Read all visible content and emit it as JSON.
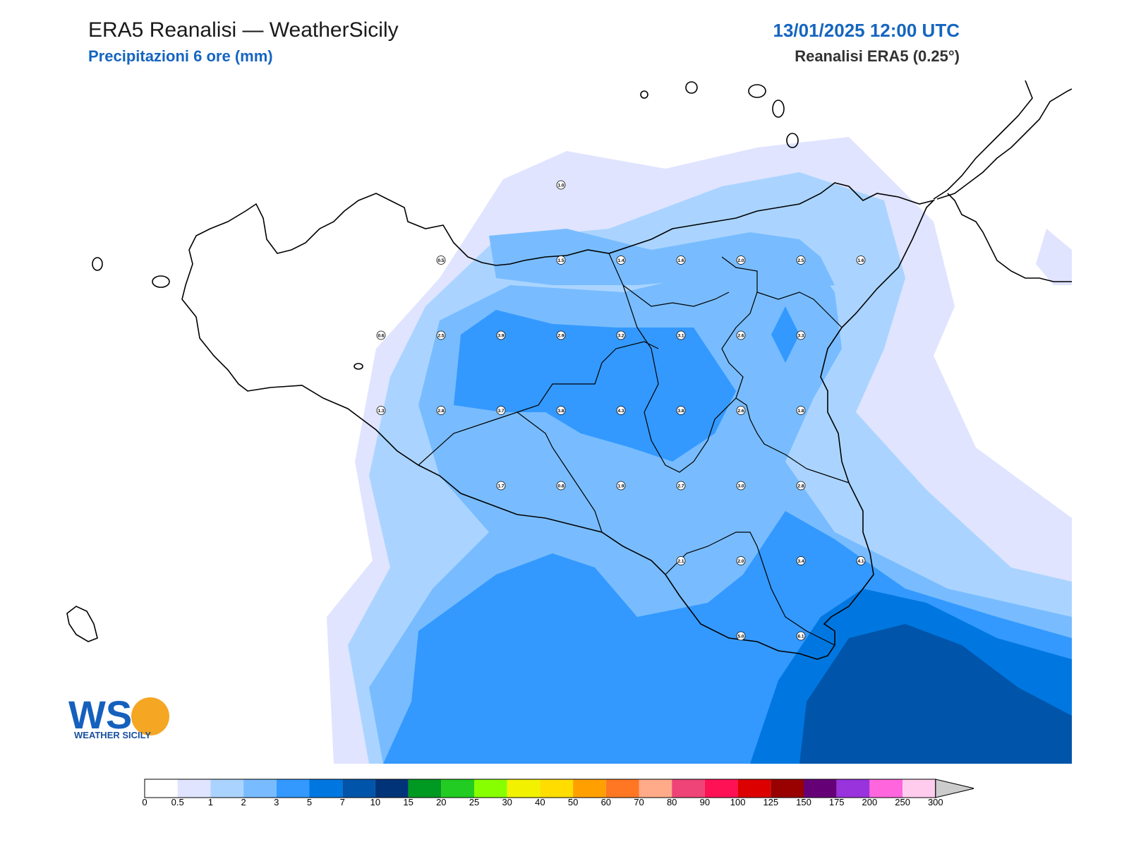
{
  "header": {
    "title": "ERA5 Reanalisi — WeatherSicily",
    "subtitle": "Precipitazioni 6 ore (mm)",
    "datetime": "13/01/2025 12:00 UTC",
    "source": "Reanalisi ERA5 (0.25°)"
  },
  "logo": {
    "initials": "WS",
    "name": "WEATHER SICILY"
  },
  "colorbar": {
    "unit": "mm",
    "ticks": [
      "0",
      "0.5",
      "1",
      "2",
      "3",
      "5",
      "7",
      "10",
      "15",
      "20",
      "25",
      "30",
      "40",
      "50",
      "60",
      "70",
      "80",
      "90",
      "100",
      "125",
      "150",
      "175",
      "200",
      "250",
      "300"
    ],
    "colors": [
      "#ffffff",
      "#e0e4ff",
      "#aad4ff",
      "#78bcff",
      "#3399ff",
      "#0077e0",
      "#0055aa",
      "#003377",
      "#009922",
      "#22cc22",
      "#88ff00",
      "#f2f200",
      "#ffdd00",
      "#ffa000",
      "#ff7722",
      "#ffaa88",
      "#ee4477",
      "#ff1155",
      "#dd0000",
      "#990000",
      "#660077",
      "#9933dd",
      "#ff66dd",
      "#ffccee"
    ],
    "overflow_color": "#cccccc"
  },
  "chart_data": {
    "type": "heatmap",
    "variable": "Precipitazioni 6 ore (mm)",
    "grid_values": [
      {
        "lat": 38.0,
        "lon": 13.5,
        "value": 1.0
      },
      {
        "lat": 37.5,
        "lon": 12.5,
        "value": 0.5
      },
      {
        "lat": 37.5,
        "lon": 13.5,
        "value": 1.5
      },
      {
        "lat": 37.5,
        "lon": 14.0,
        "value": 1.4
      },
      {
        "lat": 37.5,
        "lon": 14.5,
        "value": 1.6
      },
      {
        "lat": 37.5,
        "lon": 15.0,
        "value": 2.0
      },
      {
        "lat": 37.5,
        "lon": 15.5,
        "value": 2.5
      },
      {
        "lat": 37.5,
        "lon": 16.0,
        "value": 1.6
      },
      {
        "lat": 37.0,
        "lon": 12.0,
        "value": 0.6
      },
      {
        "lat": 37.0,
        "lon": 12.5,
        "value": 2.5
      },
      {
        "lat": 37.0,
        "lon": 13.0,
        "value": 3.9
      },
      {
        "lat": 37.0,
        "lon": 13.5,
        "value": 2.9
      },
      {
        "lat": 37.0,
        "lon": 14.0,
        "value": 3.2
      },
      {
        "lat": 37.0,
        "lon": 14.5,
        "value": 3.1
      },
      {
        "lat": 37.0,
        "lon": 15.0,
        "value": 2.6
      },
      {
        "lat": 37.0,
        "lon": 15.5,
        "value": 3.3
      },
      {
        "lat": 36.5,
        "lon": 12.0,
        "value": 1.3
      },
      {
        "lat": 36.5,
        "lon": 12.5,
        "value": 2.8
      },
      {
        "lat": 36.5,
        "lon": 13.0,
        "value": 3.7
      },
      {
        "lat": 36.5,
        "lon": 13.5,
        "value": 3.8
      },
      {
        "lat": 36.5,
        "lon": 14.0,
        "value": 4.3
      },
      {
        "lat": 36.5,
        "lon": 14.5,
        "value": 3.8
      },
      {
        "lat": 36.5,
        "lon": 15.0,
        "value": 2.6
      },
      {
        "lat": 36.5,
        "lon": 15.5,
        "value": 1.8
      },
      {
        "lat": 36.0,
        "lon": 13.0,
        "value": 1.7
      },
      {
        "lat": 36.0,
        "lon": 13.5,
        "value": 0.8
      },
      {
        "lat": 36.0,
        "lon": 14.0,
        "value": 1.9
      },
      {
        "lat": 36.0,
        "lon": 14.5,
        "value": 2.7
      },
      {
        "lat": 36.0,
        "lon": 15.0,
        "value": 3.0
      },
      {
        "lat": 36.0,
        "lon": 15.5,
        "value": 2.8
      },
      {
        "lat": 35.5,
        "lon": 14.5,
        "value": 2.1
      },
      {
        "lat": 35.5,
        "lon": 15.0,
        "value": 2.0
      },
      {
        "lat": 35.5,
        "lon": 15.5,
        "value": 3.4
      },
      {
        "lat": 35.5,
        "lon": 16.0,
        "value": 4.1
      },
      {
        "lat": 35.0,
        "lon": 15.0,
        "value": 5.0
      },
      {
        "lat": 35.0,
        "lon": 15.5,
        "value": 6.1
      }
    ]
  }
}
